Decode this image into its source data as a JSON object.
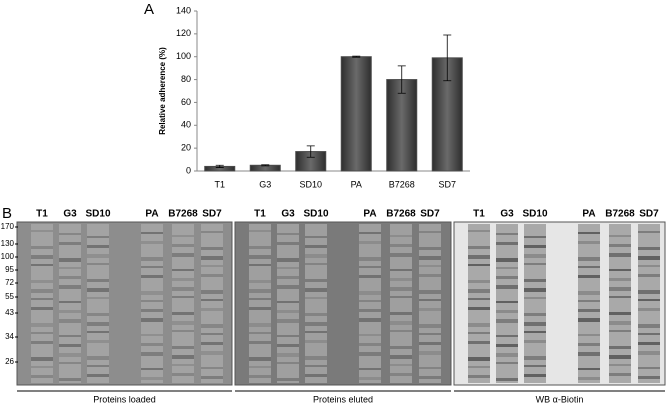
{
  "chart_data": {
    "type": "bar",
    "panel_label": "A",
    "y_label": "Relative adherence (%)",
    "categories": [
      "T1",
      "G3",
      "SD10",
      "PA",
      "B7268",
      "SD7"
    ],
    "values": [
      4,
      5,
      17,
      100,
      80,
      99
    ],
    "errors": [
      1,
      0.5,
      5,
      0.5,
      12,
      20
    ],
    "color": "#4a4a4a",
    "ylim": [
      0,
      140
    ],
    "yticks": [
      0,
      20,
      40,
      60,
      80,
      100,
      120,
      140
    ]
  },
  "panel_b": {
    "panel_label": "B",
    "lanes": [
      "T1",
      "G3",
      "SD10",
      "PA",
      "B7268",
      "SD7"
    ],
    "markers": [
      170,
      130,
      100,
      95,
      72,
      55,
      43,
      34,
      26
    ],
    "groups": [
      "Proteins loaded",
      "Proteins eluted",
      "WB α-Biotin"
    ]
  }
}
